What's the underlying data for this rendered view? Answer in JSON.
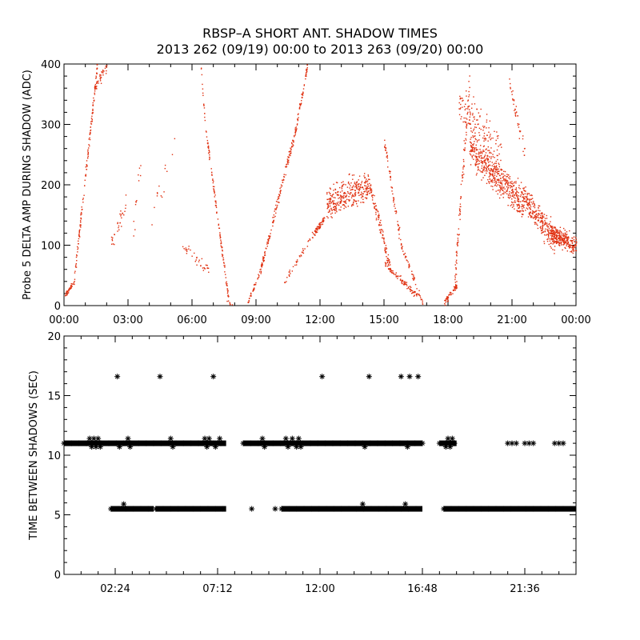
{
  "title": "RBSP–A SHORT ANT. SHADOW TIMES",
  "subtitle": "2013 262 (09/19) 00:00 to 2013 263 (09/20) 00:00",
  "colors": {
    "top_points": "#e03010",
    "bottom_points": "#000000",
    "axes": "#000000"
  },
  "chart_data": [
    {
      "type": "scatter",
      "ylabel": "Probe 5 DELTA AMP DURING SHADOW (ADC)",
      "xlim": [
        0,
        24
      ],
      "ylim": [
        0,
        400
      ],
      "x_unit": "hours",
      "xticks": [
        0,
        3,
        6,
        9,
        12,
        15,
        18,
        21,
        24
      ],
      "xtick_labels": [
        "00:00",
        "03:00",
        "06:00",
        "09:00",
        "12:00",
        "15:00",
        "18:00",
        "21:00",
        "00:00"
      ],
      "yticks": [
        0,
        100,
        200,
        300,
        400
      ],
      "ytick_labels": [
        "0",
        "100",
        "200",
        "300",
        "400"
      ],
      "marker": "dot",
      "color": "#e03010",
      "segments": [
        {
          "x0": 0.0,
          "x1": 0.45,
          "y0": 15,
          "y1": 40,
          "n": 40,
          "spread": 6
        },
        {
          "x0": 0.45,
          "x1": 1.55,
          "y0": 40,
          "y1": 400,
          "n": 140,
          "spread": 14
        },
        {
          "x0": 1.4,
          "x1": 2.0,
          "y0": 360,
          "y1": 400,
          "n": 40,
          "spread": 15
        },
        {
          "x0": 2.2,
          "x1": 2.9,
          "y0": 100,
          "y1": 170,
          "n": 30,
          "spread": 25
        },
        {
          "x0": 3.2,
          "x1": 3.6,
          "y0": 110,
          "y1": 250,
          "n": 12,
          "spread": 40
        },
        {
          "x0": 4.0,
          "x1": 5.2,
          "y0": 150,
          "y1": 260,
          "n": 14,
          "spread": 40
        },
        {
          "x0": 5.5,
          "x1": 6.8,
          "y0": 100,
          "y1": 60,
          "n": 35,
          "spread": 12
        },
        {
          "x0": 6.4,
          "x1": 6.6,
          "y0": 400,
          "y1": 300,
          "n": 15,
          "spread": 8
        },
        {
          "x0": 6.6,
          "x1": 7.7,
          "y0": 300,
          "y1": 10,
          "n": 110,
          "spread": 10
        },
        {
          "x0": 7.6,
          "x1": 7.9,
          "y0": 10,
          "y1": 0,
          "n": 8,
          "spread": 4
        },
        {
          "x0": 8.6,
          "x1": 9.1,
          "y0": 5,
          "y1": 50,
          "n": 30,
          "spread": 6
        },
        {
          "x0": 9.1,
          "x1": 10.9,
          "y0": 45,
          "y1": 300,
          "n": 170,
          "spread": 12
        },
        {
          "x0": 10.9,
          "x1": 11.4,
          "y0": 300,
          "y1": 400,
          "n": 50,
          "spread": 12
        },
        {
          "x0": 10.3,
          "x1": 11.7,
          "y0": 40,
          "y1": 120,
          "n": 40,
          "spread": 10
        },
        {
          "x0": 11.7,
          "x1": 12.2,
          "y0": 120,
          "y1": 145,
          "n": 60,
          "spread": 8
        },
        {
          "x0": 12.3,
          "x1": 14.3,
          "y0": 170,
          "y1": 200,
          "n": 320,
          "spread": 38
        },
        {
          "x0": 14.3,
          "x1": 15.3,
          "y0": 200,
          "y1": 60,
          "n": 110,
          "spread": 20
        },
        {
          "x0": 15.0,
          "x1": 16.6,
          "y0": 70,
          "y1": 15,
          "n": 90,
          "spread": 8
        },
        {
          "x0": 15.0,
          "x1": 15.8,
          "y0": 270,
          "y1": 100,
          "n": 60,
          "spread": 15
        },
        {
          "x0": 15.8,
          "x1": 16.8,
          "y0": 100,
          "y1": 5,
          "n": 50,
          "spread": 8
        },
        {
          "x0": 17.8,
          "x1": 18.4,
          "y0": 5,
          "y1": 35,
          "n": 60,
          "spread": 8
        },
        {
          "x0": 18.3,
          "x1": 19.0,
          "y0": 40,
          "y1": 380,
          "n": 90,
          "spread": 30
        },
        {
          "x0": 18.5,
          "x1": 20.5,
          "y0": 340,
          "y1": 250,
          "n": 140,
          "spread": 50
        },
        {
          "x0": 19.0,
          "x1": 21.5,
          "y0": 260,
          "y1": 170,
          "n": 500,
          "spread": 40
        },
        {
          "x0": 21.5,
          "x1": 23.0,
          "y0": 180,
          "y1": 110,
          "n": 280,
          "spread": 35
        },
        {
          "x0": 22.8,
          "x1": 24.0,
          "y0": 120,
          "y1": 100,
          "n": 260,
          "spread": 22
        },
        {
          "x0": 20.8,
          "x1": 21.6,
          "y0": 380,
          "y1": 250,
          "n": 40,
          "spread": 25
        }
      ]
    },
    {
      "type": "scatter",
      "ylabel": "TIME BETWEEN SHADOWS (SEC)",
      "xlim": [
        0,
        24
      ],
      "ylim": [
        0,
        20
      ],
      "x_unit": "hours",
      "xticks": [
        2.4,
        7.2,
        12.0,
        16.8,
        21.6
      ],
      "xtick_labels": [
        "02:24",
        "07:12",
        "12:00",
        "16:48",
        "21:36"
      ],
      "yticks": [
        0,
        5,
        10,
        15,
        20
      ],
      "ytick_labels": [
        "0",
        "5",
        "10",
        "15",
        "20"
      ],
      "marker": "asterisk",
      "color": "#000000",
      "bands": [
        {
          "y": 11.0,
          "ranges": [
            [
              0.0,
              7.6
            ],
            [
              8.4,
              16.8
            ],
            [
              17.6,
              18.4
            ]
          ]
        },
        {
          "y": 5.5,
          "ranges": [
            [
              2.2,
              4.2
            ],
            [
              4.3,
              7.6
            ],
            [
              10.2,
              16.8
            ],
            [
              17.8,
              24.0
            ]
          ]
        }
      ],
      "points": [
        [
          1.2,
          11.4
        ],
        [
          1.3,
          10.7
        ],
        [
          1.4,
          11.4
        ],
        [
          1.5,
          10.7
        ],
        [
          1.6,
          11.4
        ],
        [
          1.7,
          10.7
        ],
        [
          2.5,
          16.6
        ],
        [
          2.6,
          10.7
        ],
        [
          2.8,
          5.9
        ],
        [
          3.0,
          11.4
        ],
        [
          3.1,
          10.7
        ],
        [
          4.5,
          16.6
        ],
        [
          5.0,
          11.4
        ],
        [
          5.1,
          10.7
        ],
        [
          6.6,
          11.4
        ],
        [
          6.7,
          10.7
        ],
        [
          6.8,
          11.4
        ],
        [
          7.0,
          16.6
        ],
        [
          7.1,
          10.7
        ],
        [
          7.3,
          11.4
        ],
        [
          8.8,
          5.5
        ],
        [
          9.3,
          11.4
        ],
        [
          9.4,
          10.7
        ],
        [
          9.9,
          5.5
        ],
        [
          10.4,
          11.4
        ],
        [
          10.5,
          10.7
        ],
        [
          10.7,
          11.4
        ],
        [
          10.9,
          10.7
        ],
        [
          11.0,
          11.4
        ],
        [
          11.1,
          10.7
        ],
        [
          12.1,
          16.6
        ],
        [
          14.1,
          10.7
        ],
        [
          14.0,
          5.9
        ],
        [
          14.3,
          16.6
        ],
        [
          15.8,
          16.6
        ],
        [
          16.0,
          5.9
        ],
        [
          16.1,
          10.7
        ],
        [
          16.2,
          16.6
        ],
        [
          16.6,
          16.6
        ],
        [
          17.9,
          10.7
        ],
        [
          18.0,
          11.4
        ],
        [
          18.1,
          10.7
        ],
        [
          18.2,
          11.4
        ],
        [
          20.8,
          11.0
        ],
        [
          21.0,
          11.0
        ],
        [
          21.2,
          11.0
        ],
        [
          21.6,
          11.0
        ],
        [
          21.8,
          11.0
        ],
        [
          22.0,
          11.0
        ],
        [
          23.0,
          11.0
        ],
        [
          23.2,
          11.0
        ],
        [
          23.4,
          11.0
        ]
      ]
    }
  ]
}
